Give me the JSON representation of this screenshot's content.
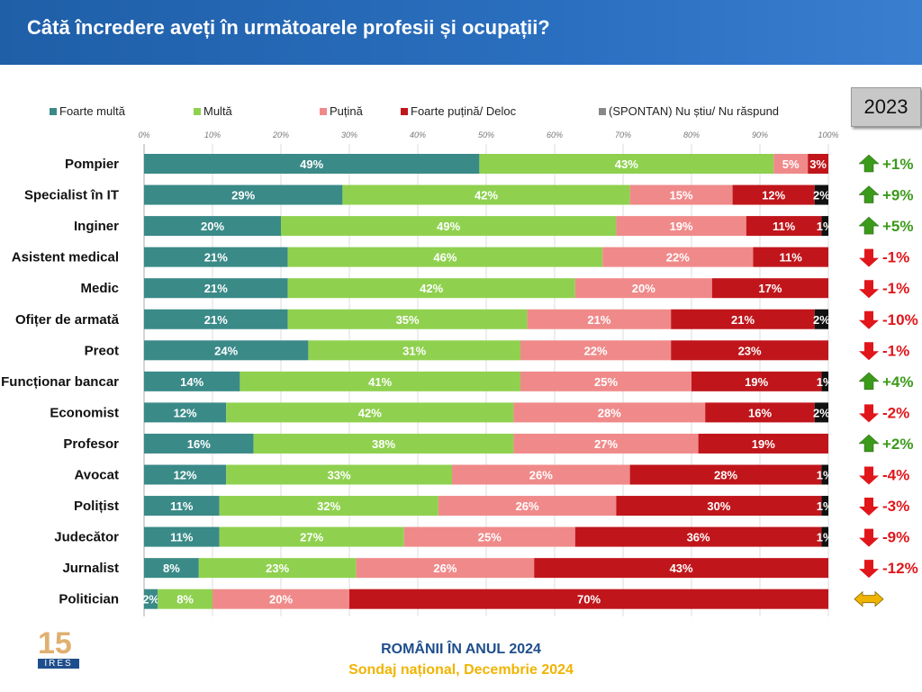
{
  "header": {
    "title": "Câtă încredere aveți în următoarele profesii și ocupații?"
  },
  "comparison_year": "2023",
  "footer": {
    "line1": "ROMÂNII ÎN ANUL 2024",
    "line2": "Sondaj național, Decembrie 2024",
    "logo_number": "15",
    "logo_text": "IRES"
  },
  "chart_data": {
    "type": "bar",
    "orientation": "horizontal",
    "stacked": true,
    "xlim": [
      0,
      100
    ],
    "grid": true,
    "legend_position": "top",
    "x_ticks": [
      "0%",
      "10%",
      "20%",
      "30%",
      "40%",
      "50%",
      "60%",
      "70%",
      "80%",
      "90%",
      "100%"
    ],
    "series": [
      {
        "name": "Foarte multă",
        "color": "#3a8a88"
      },
      {
        "name": "Multă",
        "color": "#8fd14f"
      },
      {
        "name": "Puțină",
        "color": "#f08a8a"
      },
      {
        "name": "Foarte puțină/ Deloc",
        "color": "#c0161b"
      },
      {
        "name": "(SPONTAN) Nu știu/ Nu răspund",
        "color": "#111111"
      }
    ],
    "categories": [
      "Pompier",
      "Specialist în IT",
      "Inginer",
      "Asistent medical",
      "Medic",
      "Ofițer de armată",
      "Preot",
      "Funcționar bancar",
      "Economist",
      "Profesor",
      "Avocat",
      "Polițist",
      "Judecător",
      "Jurnalist",
      "Politician"
    ],
    "values": [
      [
        49,
        43,
        5,
        3,
        null
      ],
      [
        29,
        42,
        15,
        12,
        2
      ],
      [
        20,
        49,
        19,
        11,
        1
      ],
      [
        21,
        46,
        22,
        11,
        null
      ],
      [
        21,
        42,
        20,
        17,
        null
      ],
      [
        21,
        35,
        21,
        21,
        2
      ],
      [
        24,
        31,
        22,
        23,
        null
      ],
      [
        14,
        41,
        25,
        19,
        1
      ],
      [
        12,
        42,
        28,
        16,
        2
      ],
      [
        16,
        38,
        27,
        19,
        null
      ],
      [
        12,
        33,
        26,
        28,
        1
      ],
      [
        11,
        32,
        26,
        30,
        1
      ],
      [
        11,
        27,
        25,
        36,
        1
      ],
      [
        8,
        23,
        26,
        43,
        null
      ],
      [
        2,
        8,
        20,
        70,
        null
      ]
    ],
    "change_vs_2023": [
      "+1%",
      "+9%",
      "+5%",
      "-1%",
      "-1%",
      "-10%",
      "-1%",
      "+4%",
      "-2%",
      "+2%",
      "-4%",
      "-3%",
      "-9%",
      "-12%",
      ""
    ],
    "change_direction": [
      "up",
      "up",
      "up",
      "down",
      "down",
      "down",
      "down",
      "up",
      "down",
      "up",
      "down",
      "down",
      "down",
      "down",
      "same"
    ],
    "change_colors": {
      "up": "#3c9a1a",
      "down": "#e0161b",
      "same": "#f0b400"
    }
  }
}
